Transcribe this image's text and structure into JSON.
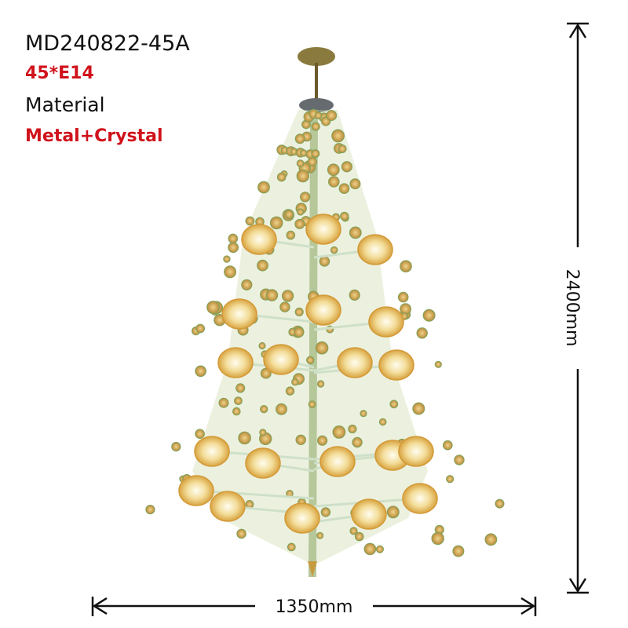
{
  "header": {
    "model": "MD240822-45A",
    "bulbs": "45*E14",
    "material_label": "Material",
    "material": "Metal+Crystal"
  },
  "dimensions": {
    "height": "2400mm",
    "width": "1350mm"
  }
}
